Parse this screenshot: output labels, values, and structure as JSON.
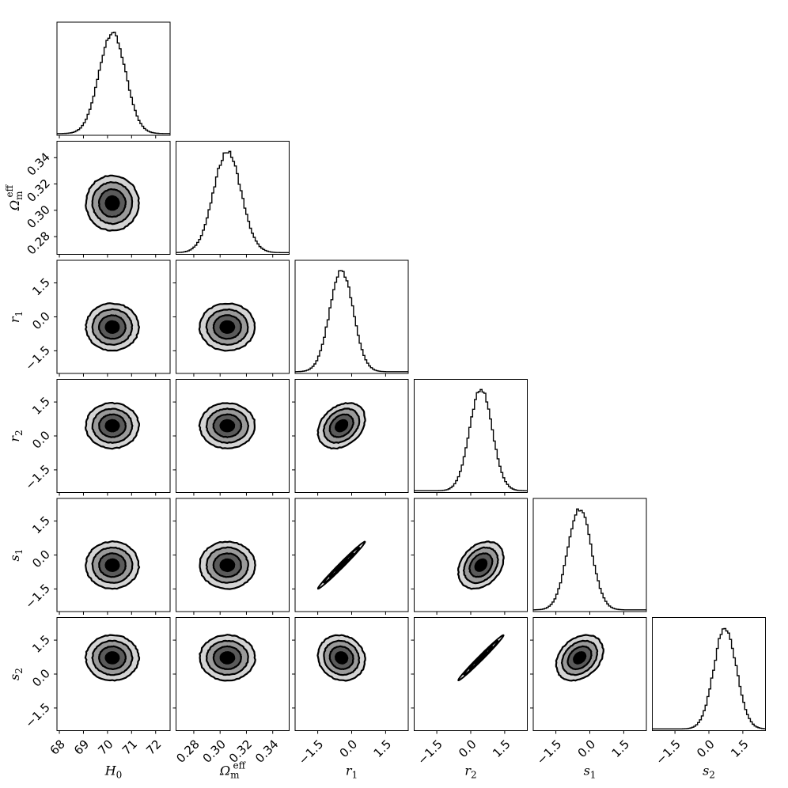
{
  "chart_data": {
    "type": "corner",
    "parameters": [
      {
        "key": "H0",
        "label": "H",
        "sub": "0",
        "sup": "",
        "mean": 70.2,
        "sd": 0.55,
        "range": [
          67.9,
          72.6
        ],
        "ticks": [
          68,
          69,
          70,
          71,
          72
        ],
        "tick_labels": [
          "68",
          "69",
          "70",
          "71",
          "72"
        ]
      },
      {
        "key": "Om",
        "label": "Ω",
        "sub": "m",
        "sup": "eff",
        "mean": 0.3055,
        "sd": 0.0105,
        "range": [
          0.2665,
          0.3525
        ],
        "ticks": [
          0.28,
          0.3,
          0.32,
          0.34
        ],
        "tick_labels": [
          "0.28",
          "0.30",
          "0.32",
          "0.34"
        ]
      },
      {
        "key": "r1",
        "label": "r",
        "sub": "1",
        "sup": "",
        "mean": -0.45,
        "sd": 0.52,
        "range": [
          -2.5,
          2.5
        ],
        "ticks": [
          -1.5,
          0.0,
          1.5
        ],
        "tick_labels": [
          "−1.5",
          "0.0",
          "1.5"
        ]
      },
      {
        "key": "r2",
        "label": "r",
        "sub": "2",
        "sup": "",
        "mean": 0.45,
        "sd": 0.5,
        "range": [
          -2.5,
          2.5
        ],
        "ticks": [
          -1.5,
          0.0,
          1.5
        ],
        "tick_labels": [
          "−1.5",
          "0.0",
          "1.5"
        ]
      },
      {
        "key": "s1",
        "label": "s",
        "sub": "1",
        "sup": "",
        "mean": -0.45,
        "sd": 0.52,
        "range": [
          -2.5,
          2.5
        ],
        "ticks": [
          -1.5,
          0.0,
          1.5
        ],
        "tick_labels": [
          "−1.5",
          "0.0",
          "1.5"
        ]
      },
      {
        "key": "s2",
        "label": "s",
        "sub": "2",
        "sup": "",
        "mean": 0.72,
        "sd": 0.5,
        "range": [
          -2.5,
          2.5
        ],
        "ticks": [
          -1.5,
          0.0,
          1.5
        ],
        "tick_labels": [
          "−1.5",
          "0.0",
          "1.5"
        ]
      }
    ],
    "correlations": [
      {
        "pair": [
          "r1",
          "s1"
        ],
        "rho": 0.99
      },
      {
        "pair": [
          "r2",
          "s2"
        ],
        "rho": 0.99
      },
      {
        "pair": [
          "r1",
          "r2"
        ],
        "rho": 0.3
      },
      {
        "pair": [
          "r2",
          "s1"
        ],
        "rho": 0.3
      },
      {
        "pair": [
          "r1",
          "s2"
        ],
        "rho": -0.1
      },
      {
        "pair": [
          "s1",
          "s2"
        ],
        "rho": 0.3
      }
    ],
    "contour_levels": [
      0.5,
      1.0,
      1.5,
      2.0
    ],
    "contour_fills": [
      "#000000",
      "#5a5a5a",
      "#9a9a9a",
      "#d4d4d4"
    ],
    "line_color": "#000000"
  }
}
